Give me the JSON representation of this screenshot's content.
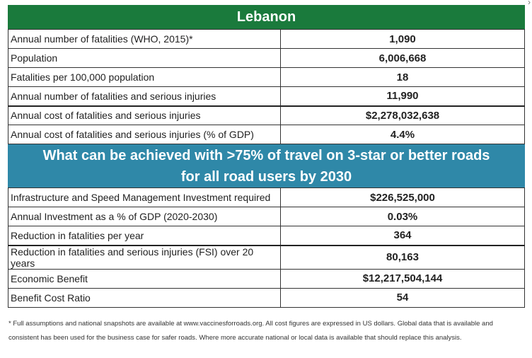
{
  "header": {
    "title": "Lebanon"
  },
  "section1": {
    "rows": [
      {
        "label": "Annual number of fatalities (WHO, 2015)*",
        "value": "1,090"
      },
      {
        "label": "Population",
        "value": "6,006,668"
      },
      {
        "label": "Fatalities per 100,000 population",
        "value": "18"
      },
      {
        "label": "Annual number of fatalities and serious injuries",
        "value": "11,990"
      },
      {
        "label": "Annual cost of fatalities and serious injuries",
        "value": "$2,278,032,638"
      },
      {
        "label": "Annual cost of fatalities and serious injuries (% of GDP)",
        "value": "4.4%"
      }
    ]
  },
  "section2": {
    "title_line1": "What can be achieved with >75% of travel on 3-star or better roads",
    "title_line2": "for all road users by 2030",
    "rows": [
      {
        "label": "Infrastructure and Speed Management Investment required",
        "value": "$226,525,000"
      },
      {
        "label": "Annual Investment as a % of GDP (2020-2030)",
        "value": "0.03%"
      },
      {
        "label": "Reduction in fatalities per year",
        "value": "364"
      },
      {
        "label": "Reduction in fatalities and serious injuries (FSI) over 20 years",
        "value": "80,163"
      },
      {
        "label": "Economic Benefit",
        "value": "$12,217,504,144"
      },
      {
        "label": "Benefit Cost Ratio",
        "value": "54"
      }
    ]
  },
  "footnote": "* Full assumptions and national snapshots are available at www.vaccinesforroads.org. All cost figures are expressed in US dollars. Global data that is available and consistent has been used for the business case for safer roads. Where more accurate national or local data is available that should replace this analysis.",
  "corner_mark": "›"
}
